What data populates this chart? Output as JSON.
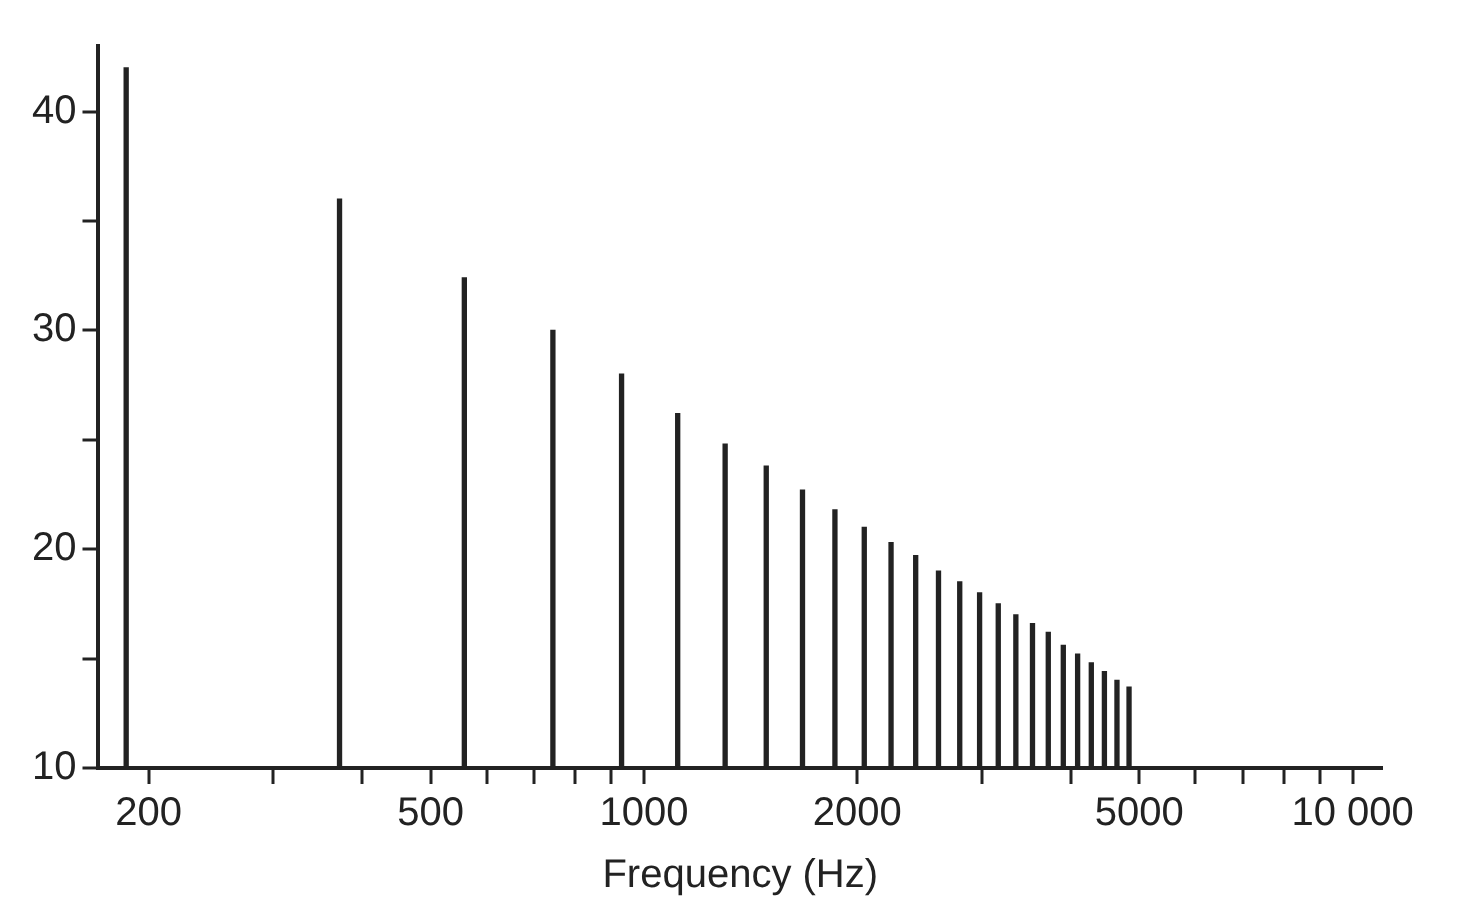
{
  "chart_data": {
    "type": "bar",
    "xlabel": "Frequency (Hz)",
    "log": "x",
    "grid": false,
    "legend": false,
    "x": [
      186,
      372,
      558,
      744,
      930,
      1116,
      1302,
      1488,
      1674,
      1860,
      2046,
      2232,
      2418,
      2604,
      2790,
      2976,
      3162,
      3348,
      3534,
      3720,
      3906,
      4092,
      4278,
      4464,
      4650,
      4836
    ],
    "series": [
      {
        "color": "#222222",
        "values": [
          42,
          36,
          32.4,
          30,
          28,
          26.2,
          24.8,
          23.8,
          22.7,
          21.8,
          21,
          20.3,
          19.7,
          19,
          18.5,
          18,
          17.5,
          17,
          16.6,
          16.2,
          15.6,
          15.2,
          14.8,
          14.4,
          14,
          13.7
        ]
      }
    ],
    "xlim": [
      170,
      11000
    ],
    "xticks": [
      200,
      {
        "value": 300,
        "label": null
      },
      {
        "value": 400,
        "label": null
      },
      500,
      {
        "value": 600,
        "label": null
      },
      {
        "value": 700,
        "label": null
      },
      {
        "value": 800,
        "label": null
      },
      {
        "value": 900,
        "label": null
      },
      1000,
      2000,
      {
        "value": 3000,
        "label": null
      },
      {
        "value": 4000,
        "label": null
      },
      5000,
      {
        "value": 6000,
        "label": null
      },
      {
        "value": 7000,
        "label": null
      },
      {
        "value": 8000,
        "label": null
      },
      {
        "value": 9000,
        "label": null
      },
      {
        "value": 10000,
        "label": "10 000"
      }
    ],
    "ylim": [
      10,
      43
    ],
    "yticks": [
      10,
      {
        "value": 15,
        "label": null
      },
      20,
      {
        "value": 25,
        "label": null
      },
      30,
      {
        "value": 35,
        "label": null
      },
      40
    ]
  }
}
